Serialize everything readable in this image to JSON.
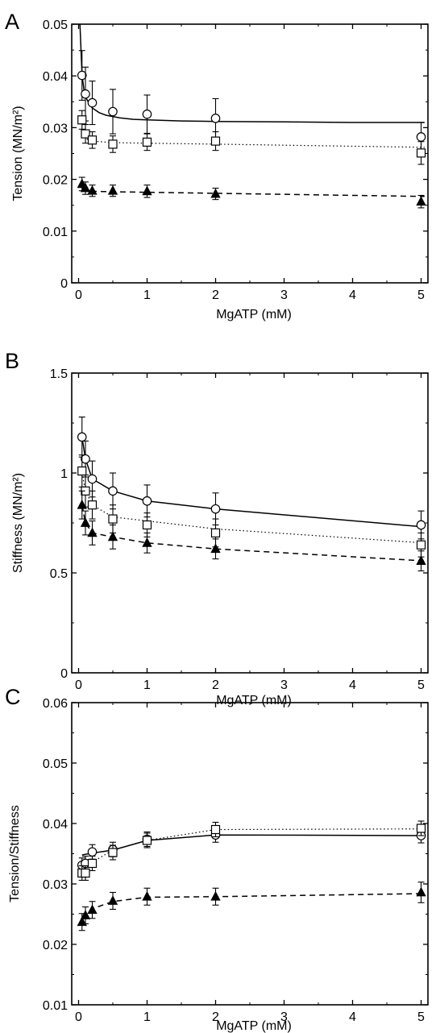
{
  "chart_data": [
    {
      "panel": "A",
      "type": "scatter",
      "xlabel": "MgATP (mM)",
      "ylabel": "Tension (MN/m²)",
      "xlim": [
        -0.1,
        5.1
      ],
      "ylim": [
        0,
        0.05
      ],
      "xticks": [
        "0",
        "1",
        "2",
        "3",
        "4",
        "5"
      ],
      "yticks": [
        "0",
        "0.01",
        "0.02",
        "0.03",
        "0.04",
        "0.05"
      ],
      "series": [
        {
          "marker": "open-circle",
          "line": "solid",
          "x": [
            0.05,
            0.1,
            0.2,
            0.5,
            1,
            2,
            5
          ],
          "y": [
            0.0401,
            0.0365,
            0.0348,
            0.0331,
            0.0326,
            0.0318,
            0.0282
          ],
          "err": [
            0.0048,
            0.0052,
            0.0042,
            0.0043,
            0.0037,
            0.0038,
            0.0028
          ],
          "fit": {
            "x": [
              0.02,
              0.05,
              0.08,
              0.12,
              0.16,
              0.2,
              0.3,
              0.4,
              0.6,
              0.8,
              1,
              1.5,
              2,
              3,
              4,
              5.05
            ],
            "y": [
              0.05,
              0.0402,
              0.0372,
              0.0355,
              0.0345,
              0.0338,
              0.0329,
              0.0324,
              0.0319,
              0.0316,
              0.0315,
              0.0313,
              0.0312,
              0.0311,
              0.031,
              0.031
            ]
          }
        },
        {
          "marker": "open-square",
          "line": "dotted",
          "x": [
            0.05,
            0.1,
            0.2,
            0.5,
            1,
            2,
            5
          ],
          "y": [
            0.0315,
            0.0288,
            0.0276,
            0.0268,
            0.0272,
            0.0274,
            0.0251
          ],
          "err": [
            0.0018,
            0.0018,
            0.0016,
            0.0016,
            0.0016,
            0.0018,
            0.0022
          ],
          "fit": {
            "x": [
              0.05,
              0.1,
              0.2,
              0.5,
              1,
              2,
              5.05
            ],
            "y": [
              0.0288,
              0.0279,
              0.0274,
              0.0271,
              0.027,
              0.0268,
              0.0262
            ]
          }
        },
        {
          "marker": "filled-triangle",
          "line": "dashed",
          "x": [
            0.05,
            0.1,
            0.2,
            0.5,
            1,
            2,
            5
          ],
          "y": [
            0.0191,
            0.0183,
            0.0178,
            0.0178,
            0.0177,
            0.0172,
            0.0157
          ],
          "err": [
            0.0013,
            0.0012,
            0.0011,
            0.0011,
            0.0012,
            0.0011,
            0.0012
          ],
          "fit": {
            "x": [
              0.05,
              0.1,
              0.2,
              0.5,
              1,
              2,
              5.05
            ],
            "y": [
              0.0183,
              0.0179,
              0.0177,
              0.0176,
              0.0175,
              0.0173,
              0.0167
            ]
          }
        }
      ]
    },
    {
      "panel": "B",
      "type": "scatter",
      "xlabel": "MgATP (mM)",
      "ylabel": "Stiffness (MN/m²)",
      "xlim": [
        -0.1,
        5.1
      ],
      "ylim": [
        0,
        1.5
      ],
      "xticks": [
        "0",
        "1",
        "2",
        "3",
        "4",
        "5"
      ],
      "yticks": [
        "0",
        "0.5",
        "1",
        "1.5"
      ],
      "series": [
        {
          "marker": "open-circle",
          "line": "solid",
          "x": [
            0.05,
            0.1,
            0.2,
            0.5,
            1,
            2,
            5
          ],
          "y": [
            1.18,
            1.07,
            0.97,
            0.91,
            0.86,
            0.82,
            0.74
          ],
          "err": [
            0.1,
            0.09,
            0.09,
            0.09,
            0.08,
            0.08,
            0.07
          ],
          "fit": {
            "x": [
              0.05,
              0.1,
              0.2,
              0.5,
              1,
              2,
              5.05
            ],
            "y": [
              1.18,
              1.07,
              0.97,
              0.91,
              0.86,
              0.82,
              0.73
            ]
          }
        },
        {
          "marker": "open-square",
          "line": "dotted",
          "x": [
            0.05,
            0.1,
            0.2,
            0.5,
            1,
            2,
            5
          ],
          "y": [
            1.01,
            0.91,
            0.84,
            0.77,
            0.74,
            0.7,
            0.64
          ],
          "err": [
            0.08,
            0.08,
            0.07,
            0.07,
            0.06,
            0.07,
            0.06
          ],
          "fit": {
            "x": [
              0.05,
              0.1,
              0.2,
              0.5,
              1,
              2,
              5.05
            ],
            "y": [
              1.0,
              0.91,
              0.84,
              0.78,
              0.76,
              0.72,
              0.65
            ]
          }
        },
        {
          "marker": "filled-triangle",
          "line": "dashed",
          "x": [
            0.05,
            0.1,
            0.2,
            0.5,
            1,
            2,
            5
          ],
          "y": [
            0.84,
            0.75,
            0.7,
            0.68,
            0.65,
            0.62,
            0.56
          ],
          "err": [
            0.07,
            0.06,
            0.06,
            0.06,
            0.05,
            0.05,
            0.05
          ],
          "fit": {
            "x": [
              0.05,
              0.1,
              0.2,
              0.5,
              1,
              2,
              5.05
            ],
            "y": [
              0.84,
              0.75,
              0.7,
              0.68,
              0.65,
              0.62,
              0.56
            ]
          }
        }
      ]
    },
    {
      "panel": "C",
      "type": "scatter",
      "xlabel": "MgATP (mM)",
      "ylabel": "Tension/Stiffness",
      "xlim": [
        -0.1,
        5.1
      ],
      "ylim": [
        0.01,
        0.06
      ],
      "xticks": [
        "0",
        "1",
        "2",
        "3",
        "4",
        "5"
      ],
      "yticks": [
        "0.01",
        "0.02",
        "0.03",
        "0.04",
        "0.05",
        "0.06"
      ],
      "series": [
        {
          "marker": "open-circle",
          "line": "solid",
          "x": [
            0.05,
            0.1,
            0.2,
            0.5,
            1,
            2,
            5
          ],
          "y": [
            0.0331,
            0.0334,
            0.0353,
            0.0357,
            0.0374,
            0.0381,
            0.038
          ],
          "err": [
            0.0012,
            0.0012,
            0.0012,
            0.0012,
            0.0012,
            0.0012,
            0.0012
          ],
          "fit": {
            "x": [
              0.05,
              0.2,
              0.5,
              1,
              2,
              5.05
            ],
            "y": [
              0.0348,
              0.0351,
              0.0356,
              0.0372,
              0.0381,
              0.038
            ]
          }
        },
        {
          "marker": "open-square",
          "line": "dotted",
          "x": [
            0.05,
            0.1,
            0.2,
            0.5,
            1,
            2,
            5
          ],
          "y": [
            0.0318,
            0.0318,
            0.0334,
            0.0352,
            0.0372,
            0.039,
            0.0392
          ],
          "err": [
            0.0012,
            0.0012,
            0.0012,
            0.0012,
            0.0012,
            0.0012,
            0.0012
          ],
          "fit": {
            "x": [
              0.05,
              0.2,
              0.5,
              1,
              2,
              5.05
            ],
            "y": [
              0.0318,
              0.0336,
              0.0356,
              0.0372,
              0.039,
              0.0391
            ]
          }
        },
        {
          "marker": "filled-triangle",
          "line": "dashed",
          "x": [
            0.05,
            0.1,
            0.2,
            0.5,
            1,
            2,
            5
          ],
          "y": [
            0.0237,
            0.0248,
            0.0257,
            0.0272,
            0.0279,
            0.0279,
            0.0286
          ],
          "err": [
            0.0014,
            0.0014,
            0.0014,
            0.0014,
            0.0014,
            0.0014,
            0.0017
          ],
          "fit": {
            "x": [
              0.05,
              0.2,
              0.5,
              1,
              2,
              5.05
            ],
            "y": [
              0.0245,
              0.0259,
              0.0271,
              0.0278,
              0.0279,
              0.0284
            ]
          }
        }
      ]
    }
  ]
}
